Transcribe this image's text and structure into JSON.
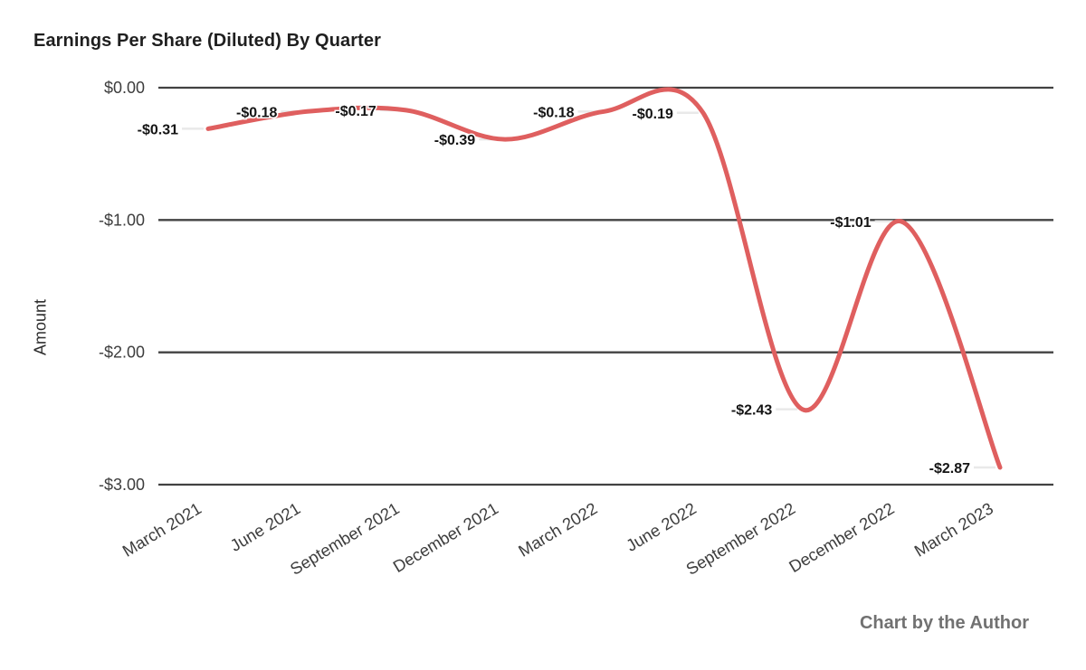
{
  "chart_data": {
    "type": "line",
    "title": "Earnings Per Share (Diluted) By Quarter",
    "xlabel": "",
    "ylabel": "Amount",
    "categories": [
      "March 2021",
      "June 2021",
      "September 2021",
      "December 2021",
      "March 2022",
      "June 2022",
      "September 2022",
      "December 2022",
      "March 2023"
    ],
    "series": [
      {
        "name": "Amount",
        "values": [
          -0.31,
          -0.18,
          -0.17,
          -0.39,
          -0.18,
          -0.19,
          -2.43,
          -1.01,
          -2.87
        ]
      }
    ],
    "data_labels": [
      "-$0.31",
      "-$0.18",
      "-$0.17",
      "-$0.39",
      "-$0.18",
      "-$0.19",
      "-$2.43",
      "-$1.01",
      "-$2.87"
    ],
    "y_ticks": [
      {
        "value": 0,
        "label": "$0.00"
      },
      {
        "value": -1,
        "label": "-$1.00"
      },
      {
        "value": -2,
        "label": "-$2.00"
      },
      {
        "value": -3,
        "label": "-$3.00"
      }
    ],
    "ylim": [
      -3,
      0
    ],
    "smooth": true,
    "legend": "none",
    "grid": "horizontal",
    "colors": {
      "line": "#DF5F5F",
      "gridline": "#424242",
      "tick_text": "#3d3d3d",
      "data_label_text": "#141414",
      "leader_line": "#e9e9e9"
    }
  },
  "footer": {
    "credit": "Chart by the Author"
  }
}
